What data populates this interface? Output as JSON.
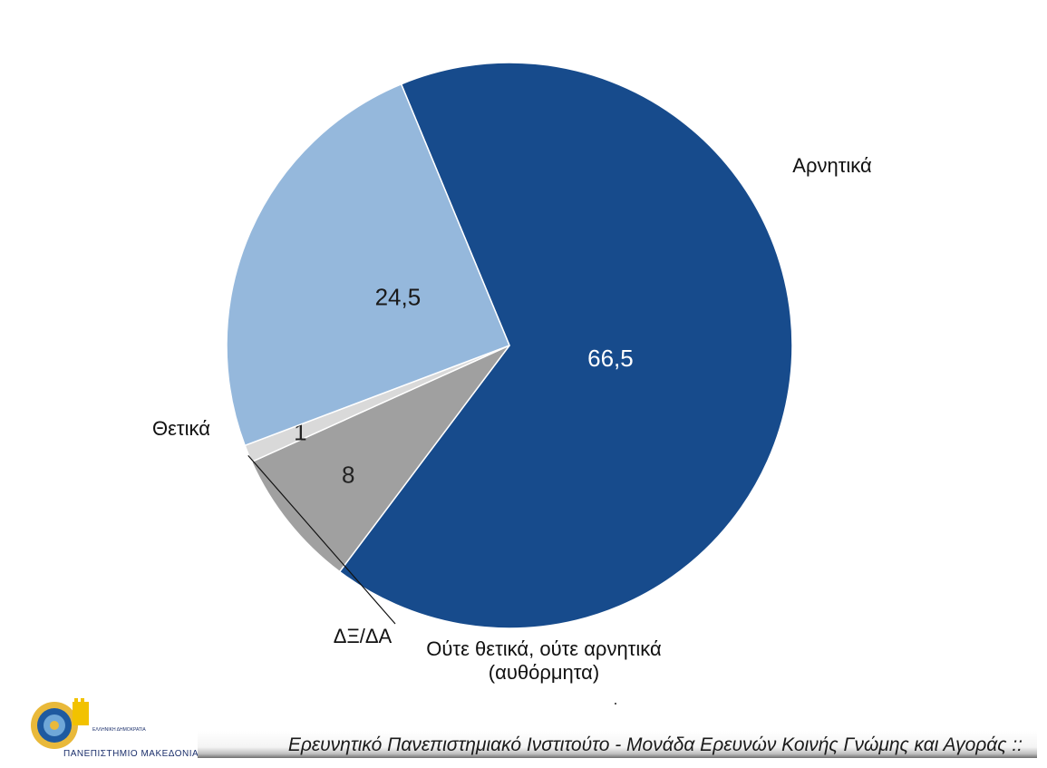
{
  "chart_data": {
    "type": "pie",
    "slices": [
      {
        "label": "Αρνητικά",
        "value": 66.5,
        "value_label": "66,5",
        "color": "#174b8c",
        "value_color": "#ffffff"
      },
      {
        "label": "Ούτε θετικά, ούτε αρνητικά (αυθόρμητα)",
        "label_lines": [
          "Ούτε θετικά, ούτε αρνητικά",
          "(αυθόρμητα)"
        ],
        "value": 8,
        "value_label": "8",
        "color": "#a0a0a0",
        "value_color": "#222222"
      },
      {
        "label": "ΔΞ/ΔΑ",
        "value": 1,
        "value_label": "1",
        "color": "#d9d9d9",
        "value_color": "#222222"
      },
      {
        "label": "Θετικά",
        "value": 24.5,
        "value_label": "24,5",
        "color": "#95b8dc",
        "value_color": "#1a1a1a"
      }
    ],
    "start": "clockwise from upper-left, Αρνητικά first",
    "legend": "none (labels next to slices)"
  },
  "footer": {
    "text": "Ερευνητικό Πανεπιστημιακό Ινστιτούτο - Μονάδα Ερευνών Κοινής Γνώμης και Αγοράς ::"
  },
  "logo": {
    "name": "university-of-macedonia-logo-icon",
    "caption": "ΠΑΝΕΠΙΣΤΗΜΙΟ ΜΑΚΕΔΟΝΙΑΣ"
  }
}
